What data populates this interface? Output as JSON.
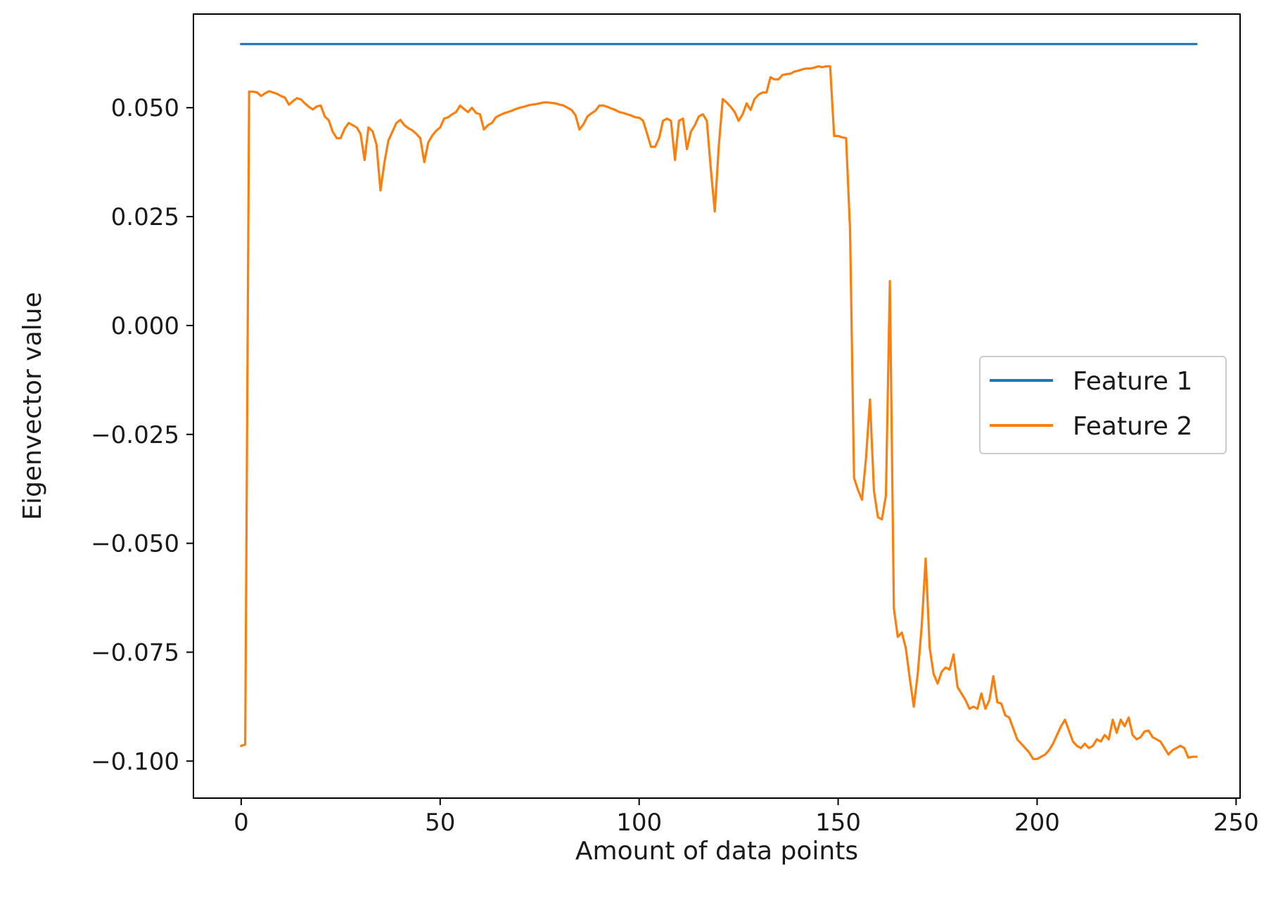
{
  "chart_data": {
    "type": "line",
    "title": "",
    "xlabel": "Amount of data points",
    "ylabel": "Eigenvector value",
    "xlim": [
      -12,
      251
    ],
    "ylim": [
      -0.1085,
      0.0715
    ],
    "xticks": [
      0,
      50,
      100,
      150,
      200,
      250
    ],
    "xtick_labels": [
      "0",
      "50",
      "100",
      "150",
      "200",
      "250"
    ],
    "yticks": [
      0.05,
      0.025,
      0.0,
      -0.025,
      -0.05,
      -0.075,
      -0.1
    ],
    "ytick_labels": [
      "0.050",
      "0.025",
      "0.000",
      "−0.025",
      "−0.050",
      "−0.075",
      "−0.100"
    ],
    "grid": false,
    "legend_position": "center-right",
    "series": [
      {
        "name": "Feature 1",
        "color": "#1f77b4",
        "points": [
          [
            0,
            0.0646
          ],
          [
            240,
            0.0646
          ]
        ]
      },
      {
        "name": "Feature 2",
        "color": "#ff7f0e",
        "points": [
          [
            0,
            -0.0965
          ],
          [
            1,
            -0.0962
          ],
          [
            2,
            0.0537
          ],
          [
            3,
            0.0537
          ],
          [
            4,
            0.0535
          ],
          [
            5,
            0.0527
          ],
          [
            6,
            0.0533
          ],
          [
            7,
            0.0538
          ],
          [
            8,
            0.0535
          ],
          [
            9,
            0.0532
          ],
          [
            10,
            0.0527
          ],
          [
            11,
            0.0523
          ],
          [
            12,
            0.0507
          ],
          [
            13,
            0.0515
          ],
          [
            14,
            0.0522
          ],
          [
            15,
            0.0519
          ],
          [
            16,
            0.051
          ],
          [
            17,
            0.0502
          ],
          [
            18,
            0.0496
          ],
          [
            19,
            0.0503
          ],
          [
            20,
            0.0505
          ],
          [
            21,
            0.048
          ],
          [
            22,
            0.0471
          ],
          [
            23,
            0.0445
          ],
          [
            24,
            0.043
          ],
          [
            25,
            0.043
          ],
          [
            26,
            0.0452
          ],
          [
            27,
            0.0465
          ],
          [
            28,
            0.046
          ],
          [
            29,
            0.0455
          ],
          [
            30,
            0.044
          ],
          [
            31,
            0.038
          ],
          [
            32,
            0.0455
          ],
          [
            33,
            0.0446
          ],
          [
            34,
            0.0415
          ],
          [
            35,
            0.031
          ],
          [
            36,
            0.0375
          ],
          [
            37,
            0.0425
          ],
          [
            38,
            0.0445
          ],
          [
            39,
            0.0465
          ],
          [
            40,
            0.0472
          ],
          [
            41,
            0.046
          ],
          [
            42,
            0.0453
          ],
          [
            43,
            0.0448
          ],
          [
            44,
            0.044
          ],
          [
            45,
            0.043
          ],
          [
            46,
            0.0375
          ],
          [
            47,
            0.042
          ],
          [
            48,
            0.0436
          ],
          [
            49,
            0.0447
          ],
          [
            50,
            0.0455
          ],
          [
            51,
            0.0475
          ],
          [
            52,
            0.0478
          ],
          [
            53,
            0.0485
          ],
          [
            54,
            0.049
          ],
          [
            55,
            0.0505
          ],
          [
            56,
            0.0497
          ],
          [
            57,
            0.049
          ],
          [
            58,
            0.05
          ],
          [
            59,
            0.0488
          ],
          [
            60,
            0.0485
          ],
          [
            61,
            0.045
          ],
          [
            62,
            0.046
          ],
          [
            63,
            0.0465
          ],
          [
            64,
            0.0478
          ],
          [
            65,
            0.0483
          ],
          [
            66,
            0.0487
          ],
          [
            67,
            0.049
          ],
          [
            68,
            0.0493
          ],
          [
            69,
            0.0497
          ],
          [
            70,
            0.05
          ],
          [
            71,
            0.0502
          ],
          [
            72,
            0.0505
          ],
          [
            73,
            0.0507
          ],
          [
            74,
            0.0508
          ],
          [
            75,
            0.051
          ],
          [
            76,
            0.0512
          ],
          [
            77,
            0.0512
          ],
          [
            78,
            0.0511
          ],
          [
            79,
            0.051
          ],
          [
            80,
            0.0507
          ],
          [
            81,
            0.0505
          ],
          [
            82,
            0.05
          ],
          [
            83,
            0.0495
          ],
          [
            84,
            0.0483
          ],
          [
            85,
            0.045
          ],
          [
            86,
            0.0462
          ],
          [
            87,
            0.048
          ],
          [
            88,
            0.0487
          ],
          [
            89,
            0.0493
          ],
          [
            90,
            0.0505
          ],
          [
            91,
            0.0505
          ],
          [
            92,
            0.0502
          ],
          [
            93,
            0.0498
          ],
          [
            94,
            0.0495
          ],
          [
            95,
            0.049
          ],
          [
            96,
            0.0488
          ],
          [
            97,
            0.0485
          ],
          [
            98,
            0.0482
          ],
          [
            99,
            0.0478
          ],
          [
            100,
            0.0477
          ],
          [
            101,
            0.047
          ],
          [
            102,
            0.044
          ],
          [
            103,
            0.041
          ],
          [
            104,
            0.041
          ],
          [
            105,
            0.043
          ],
          [
            106,
            0.047
          ],
          [
            107,
            0.0475
          ],
          [
            108,
            0.047
          ],
          [
            109,
            0.038
          ],
          [
            110,
            0.047
          ],
          [
            111,
            0.0475
          ],
          [
            112,
            0.0405
          ],
          [
            113,
            0.0445
          ],
          [
            114,
            0.046
          ],
          [
            115,
            0.048
          ],
          [
            116,
            0.0485
          ],
          [
            117,
            0.047
          ],
          [
            118,
            0.036
          ],
          [
            119,
            0.0262
          ],
          [
            120,
            0.041
          ],
          [
            121,
            0.052
          ],
          [
            122,
            0.0512
          ],
          [
            123,
            0.0502
          ],
          [
            124,
            0.049
          ],
          [
            125,
            0.047
          ],
          [
            126,
            0.0485
          ],
          [
            127,
            0.051
          ],
          [
            128,
            0.0495
          ],
          [
            129,
            0.052
          ],
          [
            130,
            0.053
          ],
          [
            131,
            0.0535
          ],
          [
            132,
            0.0535
          ],
          [
            133,
            0.057
          ],
          [
            134,
            0.0565
          ],
          [
            135,
            0.0565
          ],
          [
            136,
            0.0575
          ],
          [
            137,
            0.0577
          ],
          [
            138,
            0.0578
          ],
          [
            139,
            0.0583
          ],
          [
            140,
            0.0585
          ],
          [
            141,
            0.0588
          ],
          [
            142,
            0.059
          ],
          [
            143,
            0.059
          ],
          [
            144,
            0.0592
          ],
          [
            145,
            0.0595
          ],
          [
            146,
            0.0593
          ],
          [
            147,
            0.0595
          ],
          [
            148,
            0.0595
          ],
          [
            149,
            0.0435
          ],
          [
            150,
            0.0435
          ],
          [
            151,
            0.0432
          ],
          [
            152,
            0.043
          ],
          [
            153,
            0.022
          ],
          [
            154,
            -0.035
          ],
          [
            155,
            -0.0378
          ],
          [
            156,
            -0.04
          ],
          [
            157,
            -0.0305
          ],
          [
            158,
            -0.017
          ],
          [
            159,
            -0.038
          ],
          [
            160,
            -0.044
          ],
          [
            161,
            -0.0445
          ],
          [
            162,
            -0.039
          ],
          [
            163,
            0.0102
          ],
          [
            164,
            -0.065
          ],
          [
            165,
            -0.0715
          ],
          [
            166,
            -0.0705
          ],
          [
            167,
            -0.074
          ],
          [
            168,
            -0.081
          ],
          [
            169,
            -0.0875
          ],
          [
            170,
            -0.08
          ],
          [
            171,
            -0.069
          ],
          [
            172,
            -0.0535
          ],
          [
            173,
            -0.074
          ],
          [
            174,
            -0.08
          ],
          [
            175,
            -0.0822
          ],
          [
            176,
            -0.0795
          ],
          [
            177,
            -0.0785
          ],
          [
            178,
            -0.079
          ],
          [
            179,
            -0.0755
          ],
          [
            180,
            -0.083
          ],
          [
            181,
            -0.0845
          ],
          [
            182,
            -0.086
          ],
          [
            183,
            -0.088
          ],
          [
            184,
            -0.0875
          ],
          [
            185,
            -0.088
          ],
          [
            186,
            -0.0845
          ],
          [
            187,
            -0.088
          ],
          [
            188,
            -0.086
          ],
          [
            189,
            -0.0805
          ],
          [
            190,
            -0.0865
          ],
          [
            191,
            -0.0868
          ],
          [
            192,
            -0.0895
          ],
          [
            193,
            -0.09
          ],
          [
            194,
            -0.0925
          ],
          [
            195,
            -0.095
          ],
          [
            196,
            -0.096
          ],
          [
            197,
            -0.097
          ],
          [
            198,
            -0.098
          ],
          [
            199,
            -0.0995
          ],
          [
            200,
            -0.0995
          ],
          [
            201,
            -0.099
          ],
          [
            202,
            -0.0985
          ],
          [
            203,
            -0.0975
          ],
          [
            204,
            -0.096
          ],
          [
            205,
            -0.094
          ],
          [
            206,
            -0.092
          ],
          [
            207,
            -0.0905
          ],
          [
            208,
            -0.093
          ],
          [
            209,
            -0.0955
          ],
          [
            210,
            -0.0965
          ],
          [
            211,
            -0.097
          ],
          [
            212,
            -0.096
          ],
          [
            213,
            -0.097
          ],
          [
            214,
            -0.0965
          ],
          [
            215,
            -0.095
          ],
          [
            216,
            -0.0955
          ],
          [
            217,
            -0.094
          ],
          [
            218,
            -0.095
          ],
          [
            219,
            -0.0905
          ],
          [
            220,
            -0.0935
          ],
          [
            221,
            -0.0905
          ],
          [
            222,
            -0.092
          ],
          [
            223,
            -0.09
          ],
          [
            224,
            -0.094
          ],
          [
            225,
            -0.095
          ],
          [
            226,
            -0.0945
          ],
          [
            227,
            -0.0932
          ],
          [
            228,
            -0.093
          ],
          [
            229,
            -0.0945
          ],
          [
            230,
            -0.095
          ],
          [
            231,
            -0.0955
          ],
          [
            232,
            -0.097
          ],
          [
            233,
            -0.0985
          ],
          [
            234,
            -0.0975
          ],
          [
            235,
            -0.097
          ],
          [
            236,
            -0.0965
          ],
          [
            237,
            -0.097
          ],
          [
            238,
            -0.0992
          ],
          [
            239,
            -0.099
          ],
          [
            240,
            -0.099
          ]
        ]
      }
    ]
  }
}
